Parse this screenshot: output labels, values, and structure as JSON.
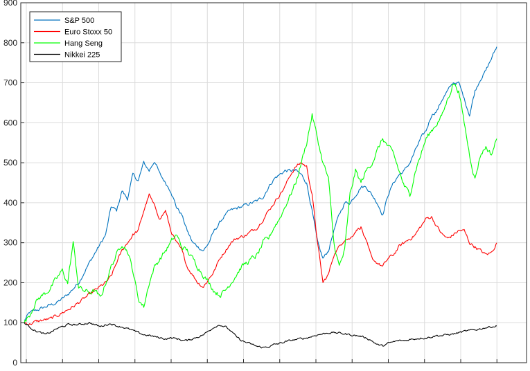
{
  "chart_data": {
    "type": "line",
    "title": "",
    "xlabel": "",
    "ylabel": "",
    "ylim": [
      0,
      900
    ],
    "y_ticks": [
      "0",
      "100",
      "200",
      "300",
      "400",
      "500",
      "600",
      "700",
      "800",
      "900"
    ],
    "x_tick_count": 14,
    "grid": true,
    "legend_position": "top-left",
    "series": [
      {
        "name": "S&P 500",
        "color": "#0072BD",
        "anchors": [
          [
            0,
            105
          ],
          [
            1,
            125
          ],
          [
            3,
            135
          ],
          [
            6,
            150
          ],
          [
            8,
            170
          ],
          [
            10,
            200
          ],
          [
            12,
            250
          ],
          [
            15,
            320
          ],
          [
            16,
            390
          ],
          [
            17,
            380
          ],
          [
            18,
            430
          ],
          [
            19,
            410
          ],
          [
            20,
            470
          ],
          [
            21,
            455
          ],
          [
            22,
            500
          ],
          [
            23,
            480
          ],
          [
            24,
            505
          ],
          [
            25,
            470
          ],
          [
            26,
            450
          ],
          [
            27,
            430
          ],
          [
            28,
            390
          ],
          [
            29,
            370
          ],
          [
            30,
            330
          ],
          [
            31,
            300
          ],
          [
            32,
            290
          ],
          [
            33,
            280
          ],
          [
            34,
            300
          ],
          [
            35,
            330
          ],
          [
            36,
            350
          ],
          [
            37,
            370
          ],
          [
            38,
            380
          ],
          [
            39,
            385
          ],
          [
            40,
            390
          ],
          [
            41,
            395
          ],
          [
            42,
            400
          ],
          [
            43,
            405
          ],
          [
            44,
            415
          ],
          [
            45,
            440
          ],
          [
            46,
            460
          ],
          [
            47,
            470
          ],
          [
            48,
            480
          ],
          [
            49,
            480
          ],
          [
            50,
            480
          ],
          [
            51,
            470
          ],
          [
            52,
            450
          ],
          [
            53,
            380
          ],
          [
            54,
            300
          ],
          [
            55,
            260
          ],
          [
            56,
            280
          ],
          [
            57,
            330
          ],
          [
            58,
            370
          ],
          [
            59,
            400
          ],
          [
            60,
            400
          ],
          [
            61,
            420
          ],
          [
            62,
            440
          ],
          [
            63,
            440
          ],
          [
            64,
            420
          ],
          [
            65,
            400
          ],
          [
            66,
            370
          ],
          [
            67,
            420
          ],
          [
            68,
            450
          ],
          [
            69,
            470
          ],
          [
            70,
            480
          ],
          [
            71,
            500
          ],
          [
            72,
            530
          ],
          [
            73,
            560
          ],
          [
            74,
            580
          ],
          [
            75,
            620
          ],
          [
            76,
            630
          ],
          [
            77,
            660
          ],
          [
            78,
            680
          ],
          [
            79,
            700
          ],
          [
            80,
            700
          ],
          [
            81,
            660
          ],
          [
            82,
            620
          ],
          [
            83,
            680
          ],
          [
            84,
            710
          ],
          [
            85,
            730
          ],
          [
            86,
            760
          ],
          [
            87,
            790
          ]
        ],
        "noise": 7
      },
      {
        "name": "Euro Stoxx 50",
        "color": "#FF0000",
        "anchors": [
          [
            0,
            100
          ],
          [
            1,
            97
          ],
          [
            2,
            102
          ],
          [
            3,
            105
          ],
          [
            5,
            110
          ],
          [
            7,
            125
          ],
          [
            9,
            140
          ],
          [
            11,
            160
          ],
          [
            13,
            180
          ],
          [
            15,
            200
          ],
          [
            16,
            215
          ],
          [
            17,
            250
          ],
          [
            18,
            280
          ],
          [
            19,
            300
          ],
          [
            20,
            320
          ],
          [
            21,
            330
          ],
          [
            22,
            380
          ],
          [
            23,
            420
          ],
          [
            24,
            390
          ],
          [
            25,
            360
          ],
          [
            26,
            380
          ],
          [
            27,
            330
          ],
          [
            28,
            300
          ],
          [
            29,
            280
          ],
          [
            30,
            240
          ],
          [
            31,
            220
          ],
          [
            32,
            200
          ],
          [
            33,
            190
          ],
          [
            34,
            210
          ],
          [
            35,
            230
          ],
          [
            36,
            260
          ],
          [
            37,
            280
          ],
          [
            38,
            300
          ],
          [
            39,
            310
          ],
          [
            40,
            315
          ],
          [
            41,
            320
          ],
          [
            42,
            330
          ],
          [
            43,
            340
          ],
          [
            44,
            360
          ],
          [
            45,
            380
          ],
          [
            46,
            400
          ],
          [
            47,
            420
          ],
          [
            48,
            440
          ],
          [
            49,
            470
          ],
          [
            50,
            490
          ],
          [
            51,
            500
          ],
          [
            52,
            490
          ],
          [
            53,
            420
          ],
          [
            54,
            300
          ],
          [
            55,
            200
          ],
          [
            56,
            220
          ],
          [
            57,
            270
          ],
          [
            58,
            290
          ],
          [
            59,
            310
          ],
          [
            60,
            310
          ],
          [
            61,
            330
          ],
          [
            62,
            340
          ],
          [
            63,
            300
          ],
          [
            64,
            260
          ],
          [
            65,
            250
          ],
          [
            66,
            240
          ],
          [
            67,
            260
          ],
          [
            68,
            270
          ],
          [
            69,
            290
          ],
          [
            70,
            300
          ],
          [
            71,
            310
          ],
          [
            72,
            320
          ],
          [
            73,
            340
          ],
          [
            74,
            360
          ],
          [
            75,
            365
          ],
          [
            76,
            340
          ],
          [
            77,
            320
          ],
          [
            78,
            310
          ],
          [
            79,
            320
          ],
          [
            80,
            330
          ],
          [
            81,
            330
          ],
          [
            82,
            300
          ],
          [
            83,
            290
          ],
          [
            84,
            280
          ],
          [
            85,
            270
          ],
          [
            86,
            275
          ],
          [
            87,
            300
          ]
        ],
        "noise": 7
      },
      {
        "name": "Hang Seng",
        "color": "#00FF00",
        "anchors": [
          [
            0,
            100
          ],
          [
            1,
            120
          ],
          [
            2,
            150
          ],
          [
            3,
            165
          ],
          [
            4,
            175
          ],
          [
            5,
            190
          ],
          [
            6,
            210
          ],
          [
            7,
            230
          ],
          [
            8,
            200
          ],
          [
            9,
            300
          ],
          [
            10,
            190
          ],
          [
            11,
            180
          ],
          [
            12,
            175
          ],
          [
            13,
            180
          ],
          [
            14,
            160
          ],
          [
            15,
            200
          ],
          [
            16,
            240
          ],
          [
            17,
            270
          ],
          [
            18,
            300
          ],
          [
            19,
            280
          ],
          [
            20,
            230
          ],
          [
            21,
            160
          ],
          [
            22,
            140
          ],
          [
            23,
            200
          ],
          [
            24,
            240
          ],
          [
            25,
            260
          ],
          [
            26,
            280
          ],
          [
            27,
            300
          ],
          [
            28,
            320
          ],
          [
            29,
            290
          ],
          [
            30,
            280
          ],
          [
            31,
            260
          ],
          [
            32,
            240
          ],
          [
            33,
            220
          ],
          [
            34,
            200
          ],
          [
            35,
            180
          ],
          [
            36,
            170
          ],
          [
            37,
            180
          ],
          [
            38,
            200
          ],
          [
            39,
            220
          ],
          [
            40,
            240
          ],
          [
            41,
            250
          ],
          [
            42,
            260
          ],
          [
            43,
            270
          ],
          [
            44,
            300
          ],
          [
            45,
            310
          ],
          [
            46,
            340
          ],
          [
            47,
            360
          ],
          [
            48,
            390
          ],
          [
            49,
            420
          ],
          [
            50,
            450
          ],
          [
            51,
            500
          ],
          [
            52,
            550
          ],
          [
            53,
            620
          ],
          [
            54,
            560
          ],
          [
            55,
            500
          ],
          [
            56,
            460
          ],
          [
            57,
            300
          ],
          [
            58,
            240
          ],
          [
            59,
            280
          ],
          [
            60,
            420
          ],
          [
            61,
            480
          ],
          [
            62,
            450
          ],
          [
            63,
            480
          ],
          [
            64,
            500
          ],
          [
            65,
            530
          ],
          [
            66,
            560
          ],
          [
            67,
            540
          ],
          [
            68,
            520
          ],
          [
            69,
            480
          ],
          [
            70,
            440
          ],
          [
            71,
            420
          ],
          [
            72,
            480
          ],
          [
            73,
            520
          ],
          [
            74,
            560
          ],
          [
            75,
            580
          ],
          [
            76,
            600
          ],
          [
            77,
            620
          ],
          [
            78,
            660
          ],
          [
            79,
            700
          ],
          [
            80,
            680
          ],
          [
            81,
            600
          ],
          [
            82,
            520
          ],
          [
            83,
            460
          ],
          [
            84,
            520
          ],
          [
            85,
            540
          ],
          [
            86,
            520
          ],
          [
            87,
            560
          ]
        ],
        "noise": 11
      },
      {
        "name": "Nikkei 225",
        "color": "#000000",
        "anchors": [
          [
            0,
            100
          ],
          [
            2,
            80
          ],
          [
            4,
            70
          ],
          [
            6,
            85
          ],
          [
            8,
            95
          ],
          [
            10,
            95
          ],
          [
            12,
            100
          ],
          [
            13,
            95
          ],
          [
            14,
            90
          ],
          [
            15,
            95
          ],
          [
            16,
            98
          ],
          [
            17,
            92
          ],
          [
            18,
            90
          ],
          [
            19,
            85
          ],
          [
            20,
            80
          ],
          [
            21,
            75
          ],
          [
            22,
            70
          ],
          [
            23,
            68
          ],
          [
            24,
            65
          ],
          [
            25,
            62
          ],
          [
            26,
            60
          ],
          [
            27,
            62
          ],
          [
            28,
            60
          ],
          [
            29,
            57
          ],
          [
            30,
            55
          ],
          [
            31,
            60
          ],
          [
            32,
            65
          ],
          [
            33,
            70
          ],
          [
            34,
            80
          ],
          [
            35,
            90
          ],
          [
            36,
            95
          ],
          [
            37,
            90
          ],
          [
            38,
            80
          ],
          [
            39,
            65
          ],
          [
            40,
            55
          ],
          [
            41,
            50
          ],
          [
            42,
            45
          ],
          [
            43,
            40
          ],
          [
            44,
            38
          ],
          [
            45,
            40
          ],
          [
            46,
            45
          ],
          [
            47,
            48
          ],
          [
            48,
            52
          ],
          [
            49,
            55
          ],
          [
            50,
            58
          ],
          [
            51,
            60
          ],
          [
            52,
            62
          ],
          [
            53,
            66
          ],
          [
            54,
            70
          ],
          [
            55,
            72
          ],
          [
            56,
            75
          ],
          [
            57,
            75
          ],
          [
            58,
            74
          ],
          [
            59,
            72
          ],
          [
            60,
            70
          ],
          [
            61,
            68
          ],
          [
            62,
            66
          ],
          [
            63,
            62
          ],
          [
            64,
            55
          ],
          [
            65,
            45
          ],
          [
            66,
            42
          ],
          [
            67,
            48
          ],
          [
            68,
            52
          ],
          [
            69,
            55
          ],
          [
            70,
            55
          ],
          [
            71,
            58
          ],
          [
            72,
            60
          ],
          [
            73,
            62
          ],
          [
            74,
            62
          ],
          [
            75,
            65
          ],
          [
            76,
            68
          ],
          [
            77,
            68
          ],
          [
            78,
            70
          ],
          [
            79,
            72
          ],
          [
            80,
            75
          ],
          [
            81,
            78
          ],
          [
            82,
            80
          ],
          [
            83,
            82
          ],
          [
            84,
            85
          ],
          [
            85,
            88
          ],
          [
            86,
            90
          ],
          [
            87,
            92
          ]
        ],
        "noise": 4
      }
    ]
  }
}
